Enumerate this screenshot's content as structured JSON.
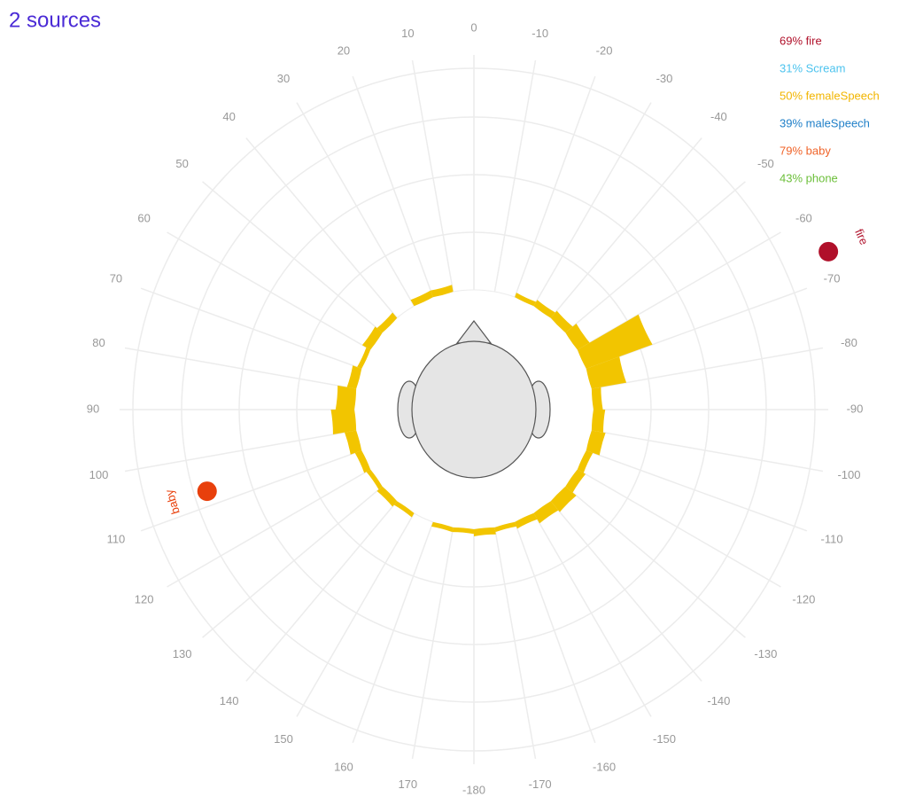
{
  "chart_data": {
    "type": "polar",
    "title": "2 sources",
    "angle_ticks": [
      0,
      -10,
      -20,
      -30,
      -40,
      -50,
      -60,
      -70,
      -80,
      -90,
      -100,
      -110,
      -120,
      -130,
      -140,
      -150,
      -160,
      -170,
      -180,
      170,
      160,
      150,
      140,
      130,
      120,
      110,
      100,
      90,
      80,
      70,
      60,
      50,
      40,
      30,
      20,
      10
    ],
    "legend": [
      {
        "label": "69% fire",
        "color": "#b0102a"
      },
      {
        "label": "31% Scream",
        "color": "#4cc3ee"
      },
      {
        "label": "50% femaleSpeech",
        "color": "#f2b500"
      },
      {
        "label": "39% maleSpeech",
        "color": "#1f7fc8"
      },
      {
        "label": "79% baby",
        "color": "#f0642a"
      },
      {
        "label": "43% phone",
        "color": "#6cbf3a"
      }
    ],
    "sources": [
      {
        "name": "fire",
        "angle": -66,
        "color": "#b0102a"
      },
      {
        "name": "baby",
        "angle": 107,
        "color": "#e8400c"
      }
    ],
    "histogram": {
      "color": "#f2c500",
      "rlim": [
        0,
        100
      ],
      "bins": [
        -180,
        -170,
        -160,
        -150,
        -140,
        -130,
        -120,
        -110,
        -100,
        -90,
        -80,
        -70,
        -60,
        -50,
        -40,
        -30,
        -20,
        -10,
        0,
        10,
        20,
        30,
        40,
        50,
        60,
        70,
        80,
        90,
        100,
        110,
        120,
        130,
        140,
        150,
        160,
        170,
        180
      ],
      "values": [
        3,
        2,
        3,
        5,
        6,
        4,
        3,
        6,
        5,
        4,
        15,
        30,
        6,
        4,
        3,
        2,
        0,
        0,
        0,
        3,
        3,
        0,
        3,
        4,
        2,
        4,
        8,
        10,
        5,
        3,
        2,
        3,
        2,
        0,
        2,
        2
      ]
    }
  }
}
